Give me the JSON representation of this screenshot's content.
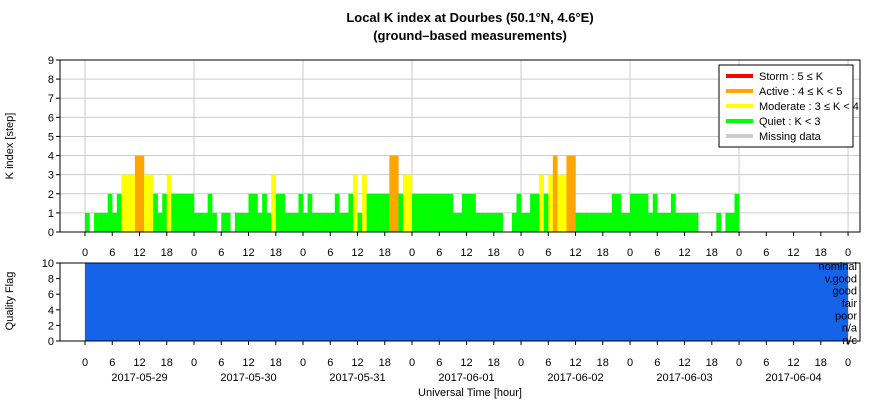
{
  "chart_data": {
    "type": "bar",
    "title": "Local K index at Dourbes (50.1°N, 4.6°E)",
    "subtitle": "(ground–based measurements)",
    "xlabel": "Universal Time [hour]",
    "ylabel_top": "K index [step]",
    "ylabel_bottom": "Quality Flag",
    "ylim_top": [
      0,
      9
    ],
    "ylim_bottom": [
      0,
      10
    ],
    "y_ticks_top": [
      "0",
      "1",
      "2",
      "3",
      "4",
      "5",
      "6",
      "7",
      "8",
      "9"
    ],
    "y_ticks_bottom": [
      "0",
      "2",
      "4",
      "6",
      "8",
      "10"
    ],
    "hour_tick_labels": [
      "0",
      "6",
      "12",
      "18"
    ],
    "final_hour_label": "0",
    "dates": [
      "2017-05-29",
      "2017-05-30",
      "2017-05-31",
      "2017-06-01",
      "2017-06-02",
      "2017-06-03",
      "2017-06-04"
    ],
    "quality_labels": [
      "nominal",
      "v.good",
      "good",
      "fair",
      "poor",
      "n/a",
      "n/c"
    ],
    "legend": {
      "placement": "top-right",
      "entries": [
        {
          "label": "Storm : 5 ≤ K",
          "color": "#ff0000"
        },
        {
          "label": "Active : 4 ≤ K < 5",
          "color": "#ffa500"
        },
        {
          "label": "Moderate : 3 ≤ K < 4",
          "color": "#ffff00"
        },
        {
          "label": "Quiet : K < 3",
          "color": "#00ff00"
        },
        {
          "label": "Missing data",
          "color": "#cccccc"
        }
      ]
    },
    "colors": {
      "quiet": "#00ff00",
      "moderate": "#ffff00",
      "active": "#ffa500",
      "storm": "#ff0000",
      "quality": "#1463e8",
      "grid": "#cccccc"
    },
    "interval_hours": 1,
    "k_values": [
      1,
      0,
      1,
      1,
      1,
      2,
      1,
      2,
      3,
      3,
      3,
      4,
      4,
      3,
      3,
      2,
      1,
      2,
      3,
      2,
      2,
      2,
      2,
      2,
      1,
      1,
      1,
      2,
      1,
      0,
      1,
      1,
      0,
      1,
      1,
      1,
      2,
      2,
      1,
      2,
      1,
      3,
      2,
      2,
      1,
      1,
      1,
      2,
      1,
      2,
      1,
      1,
      1,
      1,
      1,
      2,
      1,
      1,
      2,
      3,
      1,
      3,
      2,
      2,
      2,
      2,
      2,
      4,
      4,
      2,
      3,
      3,
      2,
      2,
      2,
      2,
      2,
      2,
      2,
      2,
      2,
      1,
      1,
      2,
      2,
      2,
      1,
      1,
      1,
      1,
      1,
      1,
      0,
      0,
      1,
      2,
      1,
      1,
      2,
      2,
      3,
      2,
      3,
      4,
      3,
      3,
      4,
      4,
      1,
      1,
      1,
      1,
      1,
      1,
      1,
      1,
      2,
      2,
      1,
      1,
      2,
      2,
      2,
      2,
      1,
      2,
      1,
      1,
      1,
      2,
      1,
      1,
      1,
      1,
      1,
      0,
      0,
      0,
      0,
      1,
      0,
      1,
      1,
      2
    ]
  }
}
